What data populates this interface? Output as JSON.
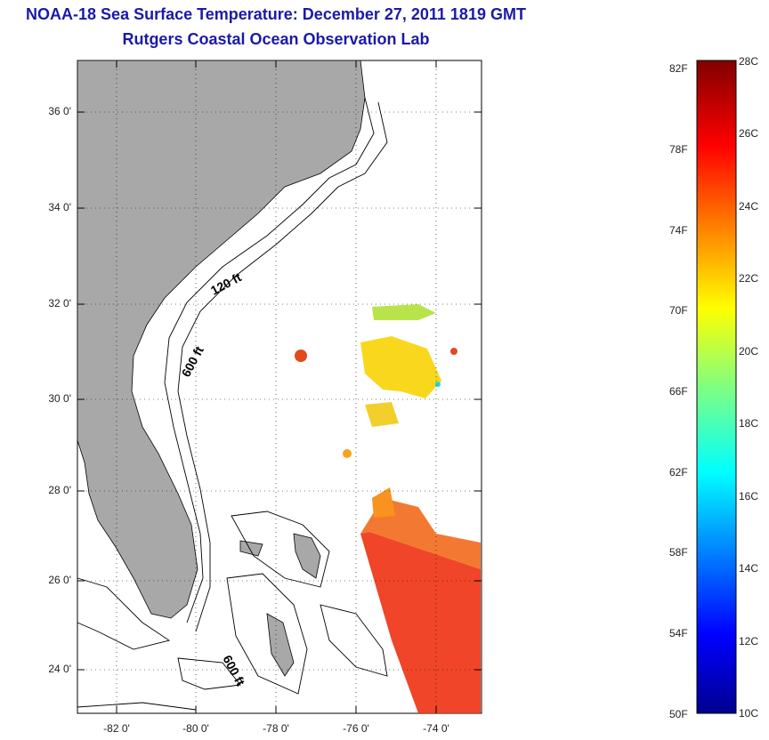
{
  "title_line1": "NOAA-18 Sea Surface Temperature:  December 27, 2011 1819 GMT",
  "title_line2": "Rutgers Coastal Ocean Observation Lab",
  "map": {
    "lat_labels": [
      "36 0'",
      "34 0'",
      "32 0'",
      "30 0'",
      "28 0'",
      "26 0'",
      "24 0'"
    ],
    "lon_labels": [
      "-82 0'",
      "-80 0'",
      "-78 0'",
      "-76 0'",
      "-74 0'"
    ],
    "contours": [
      "120 ft",
      "600 ft",
      "600 ft"
    ],
    "colors": {
      "land": "#a8a8a8",
      "ocean": "#ffffff",
      "contour": "#000000"
    }
  },
  "colorbar": {
    "fahrenheit_labels": [
      "82F",
      "78F",
      "74F",
      "70F",
      "66F",
      "62F",
      "58F",
      "54F",
      "50F"
    ],
    "celsius_labels": [
      "28C",
      "26C",
      "24C",
      "22C",
      "20C",
      "18C",
      "16C",
      "14C",
      "12C",
      "10C"
    ],
    "range_c": [
      10,
      28
    ],
    "range_f": [
      50,
      82
    ],
    "colormap": "jet"
  }
}
